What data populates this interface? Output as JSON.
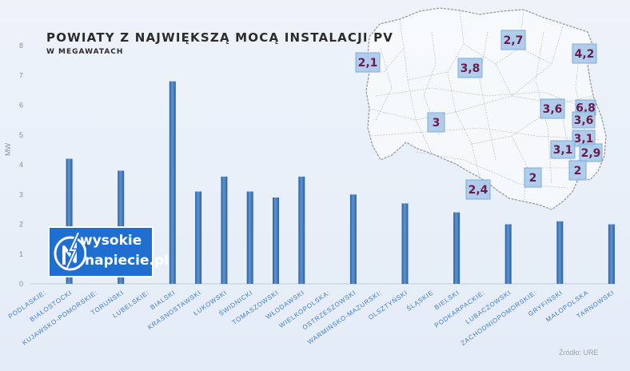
{
  "title": "POWIATY Z NAJWIĘKSZĄ MOCĄ INSTALACJI PV",
  "subtitle": "W MEGAWATACH",
  "source": "Źródło: URE",
  "logo": {
    "line1": "wysokie",
    "line2": "napiecie.pl"
  },
  "colors": {
    "bar": "#4a83c4",
    "bar_dark": "#2e5f9e",
    "map_label_bg": "#a9c8ea",
    "map_label_text": "#6b1a4c"
  },
  "chart_data": {
    "type": "bar",
    "title": "POWIATY Z NAJWIĘKSZĄ MOCĄ INSTALACJI PV",
    "subtitle": "W MEGAWATACH",
    "ylabel": "MW",
    "ylim": [
      0,
      8
    ],
    "yticks": [
      0,
      1,
      2,
      3,
      4,
      5,
      6,
      7,
      8
    ],
    "grid": false,
    "categories": [
      "PODLASKIE:",
      "BIAŁOSTOCKI",
      "KUJAWSKO-POMORSKIE:",
      "TORUŃSKI",
      "LUBELSKIE:",
      "BIALSKI",
      "KRASNOSTAWSKI",
      "ŁUKOWSKI",
      "ŚWIDNICKI",
      "TOMASZOWSKI",
      "WŁODAWSKI",
      "WIELKOPOLSKA:",
      "OSTRZESZOWSKI",
      "WARMIŃSKO-MAZURSKI:",
      "OLSZTYŃSKI",
      "ŚLĄSKIE",
      "BIELSKI",
      "PODKARPACKIE:",
      "LUBACZOWSKI",
      "ZACHODNIOPOMORSKIE:",
      "GRYFIŃSKI",
      "MAŁOPOLSKA",
      "TARNOWSKI"
    ],
    "values": [
      0,
      4.2,
      0,
      3.8,
      0,
      6.8,
      3.1,
      3.6,
      3.1,
      2.9,
      3.6,
      0,
      3.0,
      0,
      2.7,
      0,
      2.4,
      0,
      2.0,
      0,
      2.1,
      0,
      2.0
    ],
    "map_labels": [
      "2,1",
      "3,8",
      "2,7",
      "4,2",
      "3,6",
      "6,8",
      "3,6",
      "3",
      "3,1",
      "3,1",
      "2,9",
      "2",
      "2",
      "2,4"
    ]
  }
}
